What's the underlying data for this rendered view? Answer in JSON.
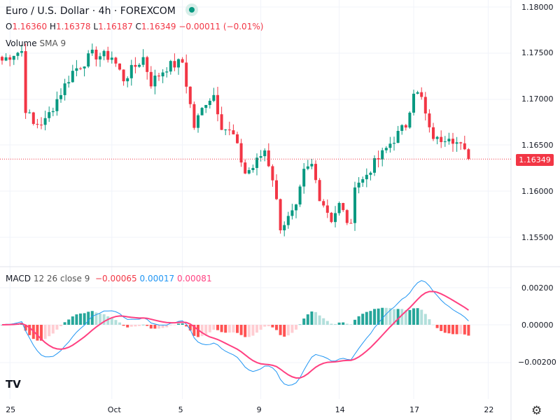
{
  "header": {
    "symbol": "Euro / U.S. Dollar",
    "interval": "4h",
    "exchange": "FOREXCOM",
    "sep": " · ",
    "ohlc": {
      "o_label": "O",
      "o": "1.16360",
      "h_label": "H",
      "h": "1.16378",
      "l_label": "L",
      "l": "1.16187",
      "c_label": "C",
      "c": "1.16349",
      "change": "−0.00011 (−0.01%)"
    }
  },
  "volume": {
    "label": "Volume",
    "sma": "SMA 9"
  },
  "macd": {
    "label": "MACD",
    "params": "12 26 close 9",
    "hist": "−0.00065",
    "macd": "0.00017",
    "signal": "0.00081"
  },
  "price_axis": [
    "1.18000",
    "1.17500",
    "1.17000",
    "1.16500",
    "1.16000",
    "1.15500"
  ],
  "macd_axis": [
    "0.00200",
    "0.00000",
    "−0.00200"
  ],
  "current_price": "1.16349",
  "time_axis": [
    {
      "label": "25",
      "i": 2
    },
    {
      "label": "Oct",
      "i": 28
    },
    {
      "label": "5",
      "i": 46
    },
    {
      "label": "9",
      "i": 66
    },
    {
      "label": "14",
      "i": 86
    },
    {
      "label": "17",
      "i": 105
    },
    {
      "label": "22",
      "i": 124
    }
  ],
  "colors": {
    "up": "#089981",
    "down": "#f23645",
    "macd": "#2196f3",
    "signal": "#ff4081"
  },
  "chart_data": {
    "type": "candlestick",
    "ylim": [
      1.1535,
      1.1806
    ],
    "waypoints": [
      [
        0,
        1.1742
      ],
      [
        3,
        1.175
      ],
      [
        5,
        1.1752
      ],
      [
        6,
        1.169
      ],
      [
        8,
        1.1672
      ],
      [
        11,
        1.1676
      ],
      [
        14,
        1.17
      ],
      [
        18,
        1.173
      ],
      [
        23,
        1.1748
      ],
      [
        28,
        1.1746
      ],
      [
        31,
        1.1722
      ],
      [
        36,
        1.1745
      ],
      [
        38,
        1.1718
      ],
      [
        42,
        1.1735
      ],
      [
        46,
        1.174
      ],
      [
        49,
        1.167
      ],
      [
        52,
        1.1698
      ],
      [
        54,
        1.1705
      ],
      [
        56,
        1.1672
      ],
      [
        59,
        1.166
      ],
      [
        62,
        1.162
      ],
      [
        64,
        1.1626
      ],
      [
        67,
        1.1645
      ],
      [
        69,
        1.1615
      ],
      [
        71,
        1.1562
      ],
      [
        73,
        1.157
      ],
      [
        75,
        1.158
      ],
      [
        77,
        1.162
      ],
      [
        79,
        1.1628
      ],
      [
        81,
        1.1595
      ],
      [
        84,
        1.157
      ],
      [
        86,
        1.1585
      ],
      [
        89,
        1.156
      ],
      [
        90,
        1.161
      ],
      [
        92,
        1.1612
      ],
      [
        94,
        1.1625
      ],
      [
        97,
        1.164
      ],
      [
        99,
        1.1652
      ],
      [
        103,
        1.1672
      ],
      [
        105,
        1.171
      ],
      [
        107,
        1.17
      ],
      [
        109,
        1.1665
      ],
      [
        111,
        1.1655
      ],
      [
        114,
        1.1662
      ],
      [
        117,
        1.1648
      ],
      [
        119,
        1.16349
      ]
    ]
  }
}
